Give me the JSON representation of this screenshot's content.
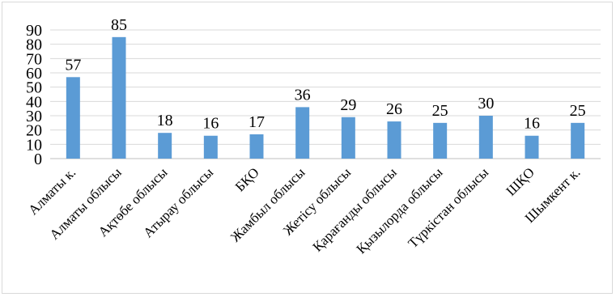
{
  "chart_data": {
    "type": "bar",
    "categories": [
      "Алматы к.",
      "Алматы облысы",
      "Ақтөбе облысы",
      "Атырау облысы",
      "БҚО",
      "Жамбыл облысы",
      "Жетісу облысы",
      "Қарағанды облысы",
      "Қызылорда облысы",
      "Түркістан облысы",
      "ШҚО",
      "Шымкент к."
    ],
    "values": [
      57,
      85,
      18,
      16,
      17,
      36,
      29,
      26,
      25,
      30,
      16,
      25
    ],
    "ylim": [
      0,
      90
    ],
    "yticks": [
      0,
      10,
      20,
      30,
      40,
      50,
      60,
      70,
      80,
      90
    ],
    "grid": true,
    "bar_color": "#5b9bd5",
    "data_labels": true
  }
}
